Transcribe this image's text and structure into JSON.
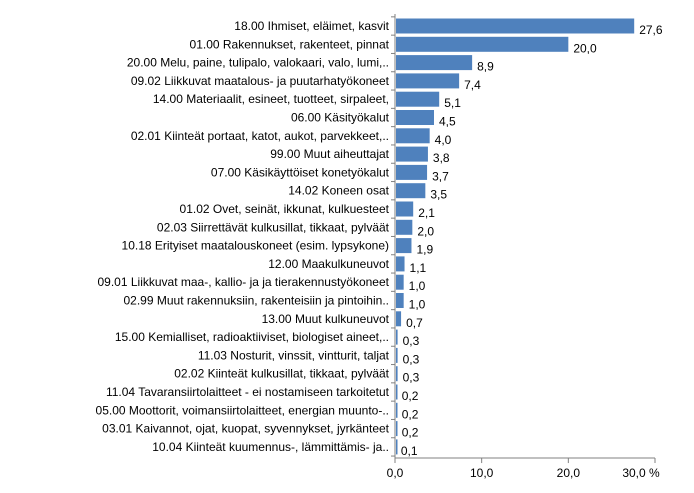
{
  "chart_data": {
    "type": "bar",
    "orientation": "horizontal",
    "title": "",
    "xlabel": "",
    "ylabel": "",
    "unit": "%",
    "xlim": [
      0,
      30
    ],
    "ticks": [
      "0,0",
      "10,0",
      "20,0",
      "30,0 %"
    ],
    "grid": false,
    "legend": "none",
    "bar_color": "#4f81bd",
    "categories": [
      "18.00 Ihmiset, eläimet, kasvit",
      "01.00 Rakennukset, rakenteet, pinnat",
      "20.00 Melu, paine, tulipalo, valokaari, valo, lumi,..",
      "09.02 Liikkuvat maatalous- ja puutarhatyökoneet",
      "14.00 Materiaalit, esineet, tuotteet, sirpaleet,",
      "06.00 Käsityökalut",
      "02.01 Kiinteät portaat, katot, aukot, parvekkeet,..",
      "99.00 Muut aiheuttajat",
      "07.00 Käsikäyttöiset konetyökalut",
      "14.02 Koneen osat",
      "01.02 Ovet, seinät, ikkunat, kulkuesteet",
      "02.03 Siirrettävät kulkusillat, tikkaat, pylväät",
      "10.18 Erityiset maatalouskoneet (esim. lypsykone)",
      "12.00 Maakulkuneuvot",
      "09.01 Liikkuvat maa-, kallio- ja ja tierakennustyökoneet",
      "02.99 Muut rakennuksiin, rakenteisiin ja pintoihin..",
      "13.00 Muut kulkuneuvot",
      "15.00 Kemialliset, radioaktiiviset, biologiset aineet,..",
      "11.03 Nosturit, vinssit, vintturit, taljat",
      "02.02 Kiinteät kulkusillat, tikkaat, pylväät",
      "11.04 Tavaransiirtolaitteet - ei nostamiseen tarkoitetut",
      "05.00 Moottorit, voimansiirtolaitteet, energian muunto-..",
      "03.01 Kaivannot, ojat, kuopat, syvennykset, jyrkänteet",
      "10.04 Kiinteät kuumennus-, lämmittämis- ja.."
    ],
    "values": [
      27.6,
      20.0,
      8.9,
      7.4,
      5.1,
      4.5,
      4.0,
      3.8,
      3.7,
      3.5,
      2.1,
      2.0,
      1.9,
      1.1,
      1.0,
      1.0,
      0.7,
      0.3,
      0.3,
      0.3,
      0.2,
      0.2,
      0.2,
      0.1
    ],
    "value_labels": [
      "27,6",
      "20,0",
      "8,9",
      "7,4",
      "5,1",
      "4,5",
      "4,0",
      "3,8",
      "3,7",
      "3,5",
      "2,1",
      "2,0",
      "1,9",
      "1,1",
      "1,0",
      "1,0",
      "0,7",
      "0,3",
      "0,3",
      "0,3",
      "0,2",
      "0,2",
      "0,2",
      "0,1"
    ]
  }
}
